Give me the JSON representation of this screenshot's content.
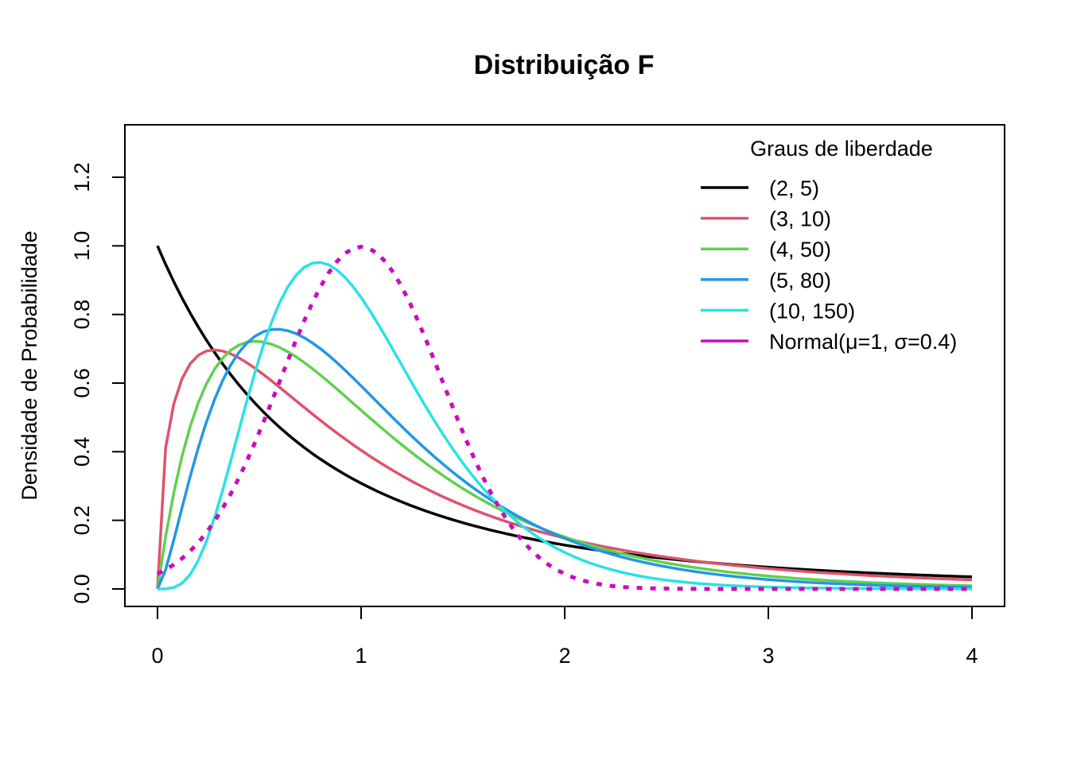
{
  "chart_data": {
    "type": "line",
    "title": "Distribuição F",
    "xlabel": "",
    "ylabel": "Densidade de Probabilidade",
    "xlim": [
      0,
      4
    ],
    "ylim": [
      0,
      1.3
    ],
    "x_ticks": [
      "0",
      "1",
      "2",
      "3",
      "4"
    ],
    "y_ticks": [
      "0.0",
      "0.2",
      "0.4",
      "0.6",
      "0.8",
      "1.0",
      "1.2"
    ],
    "legend": {
      "title": "Graus de liberdade",
      "position": "top-right"
    },
    "series": [
      {
        "name": "(2, 5)",
        "kind": "f",
        "df1": 2,
        "df2": 5,
        "color": "#000000",
        "dash": "solid"
      },
      {
        "name": "(3, 10)",
        "kind": "f",
        "df1": 3,
        "df2": 10,
        "color": "#DF536B",
        "dash": "solid"
      },
      {
        "name": "(4, 50)",
        "kind": "f",
        "df1": 4,
        "df2": 50,
        "color": "#61D04F",
        "dash": "solid"
      },
      {
        "name": "(5, 80)",
        "kind": "f",
        "df1": 5,
        "df2": 80,
        "color": "#2297E6",
        "dash": "solid"
      },
      {
        "name": "(10, 150)",
        "kind": "f",
        "df1": 10,
        "df2": 150,
        "color": "#28E2E5",
        "dash": "solid"
      },
      {
        "name": "Normal(μ=1, σ=0.4)",
        "kind": "normal",
        "mean": 1,
        "sd": 0.4,
        "color": "#CD0BBC",
        "dash": "dotted"
      }
    ]
  }
}
